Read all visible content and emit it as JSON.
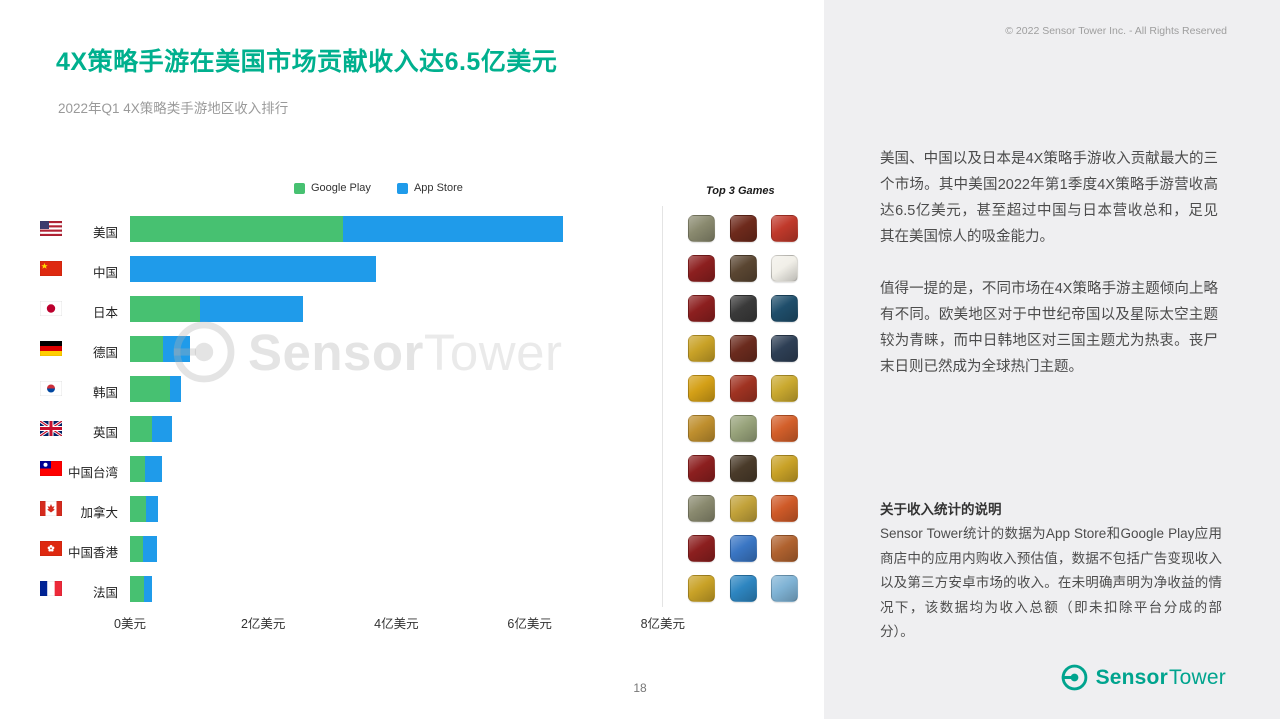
{
  "header": {
    "title": "4X策略手游在美国市场贡献收入达6.5亿美元",
    "subtitle": "2022年Q1 4X策略类手游地区收入排行"
  },
  "colors": {
    "accent_teal": "#00b08e",
    "google_play_green": "#47c171",
    "app_store_blue": "#1f9bea",
    "sidebar_bg": "#efeff1"
  },
  "chart_data": {
    "type": "bar",
    "orientation": "horizontal",
    "stacked": true,
    "title": "2022年Q1 4X策略类手游地区收入排行",
    "unit": "亿美元",
    "categories": [
      "美国",
      "中国",
      "日本",
      "德国",
      "韩国",
      "英国",
      "中国台湾",
      "加拿大",
      "中国香港",
      "法国"
    ],
    "flags": [
      "us",
      "cn",
      "jp",
      "de",
      "kr",
      "gb",
      "tw",
      "ca",
      "hk",
      "fr"
    ],
    "series": [
      {
        "name": "Google Play",
        "color": "#47c171",
        "values": [
          3.2,
          0,
          1.05,
          0.5,
          0.6,
          0.33,
          0.22,
          0.24,
          0.2,
          0.21
        ]
      },
      {
        "name": "App Store",
        "color": "#1f9bea",
        "values": [
          3.3,
          3.7,
          1.55,
          0.4,
          0.16,
          0.3,
          0.26,
          0.18,
          0.2,
          0.12
        ]
      }
    ],
    "x_ticks": [
      "0美元",
      "2亿美元",
      "4亿美元",
      "6亿美元",
      "8亿美元"
    ],
    "xlim": [
      0,
      8.2
    ],
    "grid": "tick-at-8-only",
    "legend_position": "top-center",
    "extra_column_header": "Top 3 Games",
    "top3_icon_colors": [
      [
        "#8a8a6f",
        "#6e2a1c",
        "#c0392b"
      ],
      [
        "#8c1f1f",
        "#5a4632",
        "#f1efe8"
      ],
      [
        "#8c1f1f",
        "#3a3a3a",
        "#1f4e6b"
      ],
      [
        "#c9a227",
        "#6b2b1e",
        "#2e3f55"
      ],
      [
        "#d4a017",
        "#a03322",
        "#caa92f"
      ],
      [
        "#bf8f2e",
        "#98a37b",
        "#d35f2a"
      ],
      [
        "#8c1f1f",
        "#4a3b2a",
        "#c9a227"
      ],
      [
        "#8a8a6f",
        "#c2a23a",
        "#cf5a28"
      ],
      [
        "#8c1f1f",
        "#3a76c4",
        "#b0622f"
      ],
      [
        "#c9a227",
        "#2e86c1",
        "#7fb3d5"
      ]
    ]
  },
  "watermark": {
    "bold": "Sensor",
    "light": "Tower"
  },
  "sidebar": {
    "copyright": "© 2022 Sensor Tower Inc. - All Rights Reserved",
    "para1": "美国、中国以及日本是4X策略手游收入贡献最大的三个市场。其中美国2022年第1季度4X策略手游营收高达6.5亿美元，甚至超过中国与日本营收总和，足见其在美国惊人的吸金能力。",
    "para2": "值得一提的是，不同市场在4X策略手游主题倾向上略有不同。欧美地区对于中世纪帝国以及星际太空主题较为青睐，而中日韩地区对三国主题尤为热衷。丧尸末日则已然成为全球热门主题。",
    "notes_title": "关于收入统计的说明",
    "notes_body": "Sensor Tower统计的数据为App Store和Google Play应用商店中的应用内购收入预估值，数据不包括广告变现收入以及第三方安卓市场的收入。在未明确声明为净收益的情况下，该数据均为收入总额（即未扣除平台分成的部分）。"
  },
  "logo": {
    "bold": "Sensor",
    "light": "Tower"
  },
  "footer": {
    "page_number": "18"
  }
}
